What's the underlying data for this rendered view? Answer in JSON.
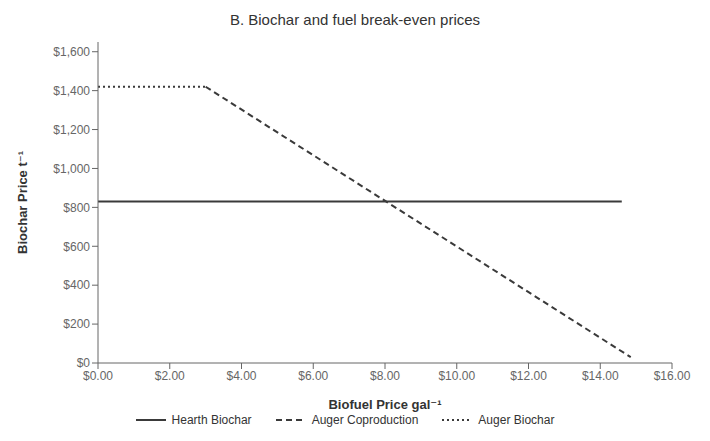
{
  "chart_data": {
    "type": "line",
    "title": "B. Biochar and fuel break-even prices",
    "xlabel": "Biofuel Price gal⁻¹",
    "ylabel": "Biochar Price t⁻¹",
    "xlim": [
      0,
      16
    ],
    "ylim": [
      0,
      1650
    ],
    "xticks": [
      {
        "value": 0,
        "label": "$0.00"
      },
      {
        "value": 2,
        "label": "$2.00"
      },
      {
        "value": 4,
        "label": "$4.00"
      },
      {
        "value": 6,
        "label": "$6.00"
      },
      {
        "value": 8,
        "label": "$8.00"
      },
      {
        "value": 10,
        "label": "$10.00"
      },
      {
        "value": 12,
        "label": "$12.00"
      },
      {
        "value": 14,
        "label": "$14.00"
      },
      {
        "value": 16,
        "label": "$16.00"
      }
    ],
    "yticks": [
      {
        "value": 0,
        "label": "$0"
      },
      {
        "value": 200,
        "label": "$200"
      },
      {
        "value": 400,
        "label": "$400"
      },
      {
        "value": 600,
        "label": "$600"
      },
      {
        "value": 800,
        "label": "$800"
      },
      {
        "value": 1000,
        "label": "$1,000"
      },
      {
        "value": 1200,
        "label": "$1,200"
      },
      {
        "value": 1400,
        "label": "$1,400"
      },
      {
        "value": 1600,
        "label": "$1,600"
      }
    ],
    "grid": false,
    "legend": "bottom",
    "series": [
      {
        "name": "Hearth Biochar",
        "color": "#3a3a3a",
        "line_style": "solid",
        "x": [
          0,
          14.6
        ],
        "values": [
          830,
          830
        ]
      },
      {
        "name": "Auger Coproduction",
        "color": "#3a3a3a",
        "line_style": "dashed",
        "x": [
          3.0,
          14.85
        ],
        "values": [
          1420,
          30
        ]
      },
      {
        "name": "Auger Biochar",
        "color": "#3a3a3a",
        "line_style": "dotted",
        "x": [
          0,
          3.0
        ],
        "values": [
          1420,
          1420
        ]
      }
    ]
  }
}
